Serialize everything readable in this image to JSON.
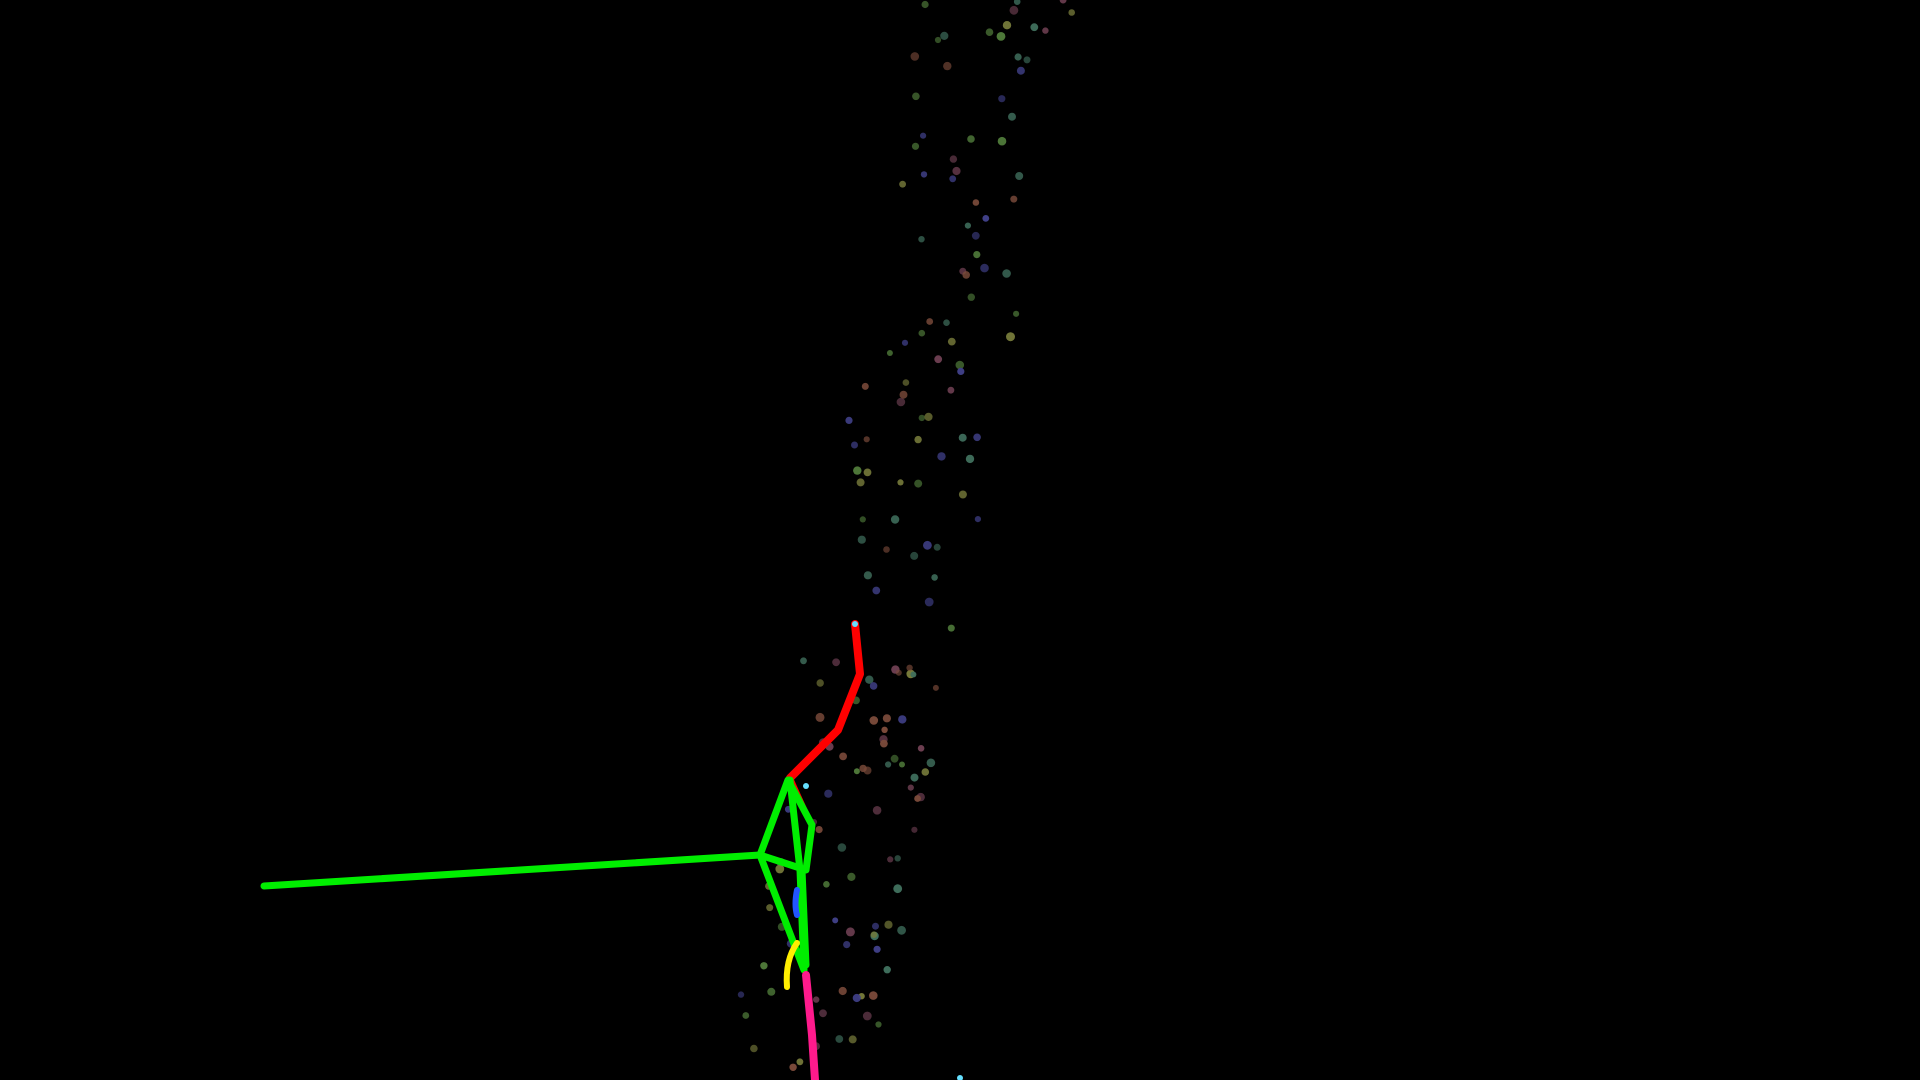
{
  "viewer": {
    "background_color": "#000000",
    "particle_colors": [
      "#4f7a3a",
      "#6e3f52",
      "#3f3f86",
      "#767a3a",
      "#3f6e5c",
      "#7a4a3a"
    ],
    "path_colors": {
      "red_path": "#ff0000",
      "green_frame": "#00ee00",
      "magenta_path": "#ff1a8c",
      "yellow_path": "#ffee00",
      "blue_path": "#2255ff",
      "cyan_marker": "#66e0ff"
    }
  }
}
